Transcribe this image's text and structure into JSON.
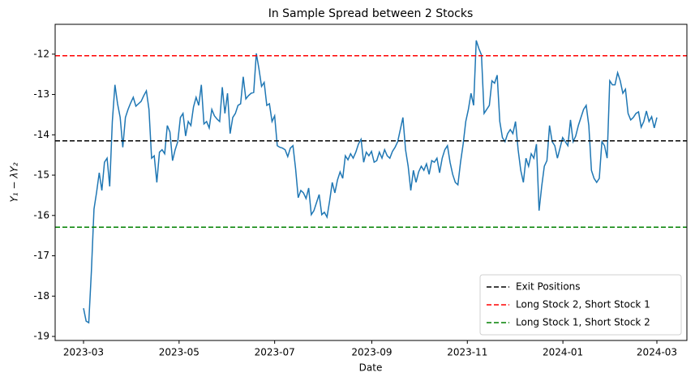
{
  "chart_data": {
    "type": "line",
    "title": "In Sample Spread between 2 Stocks",
    "x_label": "Date",
    "y_label": "Y₁ − λY₂",
    "color": "#1f77b4",
    "values": [
      -18.3,
      -18.62,
      -18.66,
      -17.39,
      -15.84,
      -15.42,
      -14.94,
      -15.38,
      -14.68,
      -14.58,
      -15.28,
      -13.67,
      -12.76,
      -13.23,
      -13.57,
      -14.31,
      -13.57,
      -13.37,
      -13.21,
      -13.07,
      -13.29,
      -13.23,
      -13.17,
      -13.03,
      -12.91,
      -13.37,
      -14.58,
      -14.52,
      -15.18,
      -14.43,
      -14.37,
      -14.47,
      -13.77,
      -13.93,
      -14.64,
      -14.37,
      -14.17,
      -13.57,
      -13.47,
      -14.03,
      -13.67,
      -13.77,
      -13.31,
      -13.07,
      -13.27,
      -12.76,
      -13.73,
      -13.67,
      -13.83,
      -13.37,
      -13.53,
      -13.61,
      -13.67,
      -12.82,
      -13.47,
      -12.97,
      -13.97,
      -13.57,
      -13.47,
      -13.27,
      -13.23,
      -12.56,
      -13.11,
      -13.03,
      -12.97,
      -12.95,
      -11.98,
      -12.36,
      -12.8,
      -12.7,
      -13.27,
      -13.23,
      -13.67,
      -13.53,
      -14.27,
      -14.31,
      -14.33,
      -14.37,
      -14.54,
      -14.33,
      -14.27,
      -14.84,
      -15.56,
      -15.38,
      -15.44,
      -15.58,
      -15.32,
      -15.98,
      -15.88,
      -15.68,
      -15.48,
      -15.98,
      -15.92,
      -16.04,
      -15.64,
      -15.18,
      -15.44,
      -15.12,
      -14.92,
      -15.08,
      -14.52,
      -14.62,
      -14.47,
      -14.58,
      -14.43,
      -14.23,
      -14.11,
      -14.68,
      -14.43,
      -14.52,
      -14.41,
      -14.68,
      -14.64,
      -14.43,
      -14.58,
      -14.37,
      -14.52,
      -14.58,
      -14.41,
      -14.31,
      -14.17,
      -13.87,
      -13.57,
      -14.37,
      -14.78,
      -15.38,
      -14.88,
      -15.18,
      -14.92,
      -14.78,
      -14.88,
      -14.72,
      -14.98,
      -14.64,
      -14.68,
      -14.58,
      -14.94,
      -14.58,
      -14.37,
      -14.27,
      -14.68,
      -14.98,
      -15.18,
      -15.24,
      -14.68,
      -14.23,
      -13.67,
      -13.37,
      -12.97,
      -13.27,
      -11.66,
      -11.86,
      -12.02,
      -13.47,
      -13.37,
      -13.27,
      -12.66,
      -12.72,
      -12.52,
      -13.67,
      -14.07,
      -14.17,
      -13.97,
      -13.87,
      -13.97,
      -13.67,
      -14.37,
      -14.88,
      -15.18,
      -14.58,
      -14.78,
      -14.47,
      -14.58,
      -14.23,
      -15.88,
      -15.28,
      -14.78,
      -14.64,
      -13.77,
      -14.17,
      -14.27,
      -14.58,
      -14.33,
      -14.07,
      -14.17,
      -14.27,
      -13.63,
      -14.17,
      -14.03,
      -13.77,
      -13.57,
      -13.37,
      -13.27,
      -13.77,
      -14.88,
      -15.08,
      -15.18,
      -15.08,
      -14.17,
      -14.27,
      -14.58,
      -12.66,
      -12.76,
      -12.76,
      -12.46,
      -12.66,
      -12.97,
      -12.87,
      -13.47,
      -13.63,
      -13.57,
      -13.47,
      -13.43,
      -13.81,
      -13.67,
      -13.41,
      -13.67,
      -13.55,
      -13.83,
      -13.57
    ],
    "reference_lines": [
      {
        "name": "Exit Positions",
        "color": "#000000",
        "value": -14.15
      },
      {
        "name": "Long Stock 2, Short Stock 1",
        "color": "#ff0000",
        "value": -12.04
      },
      {
        "name": "Long Stock 1, Short Stock 2",
        "color": "#008000",
        "value": -16.29
      }
    ],
    "xlim": [
      -10.84,
      230.46
    ],
    "xticks": [
      {
        "value": 0,
        "label": "2023-03"
      },
      {
        "value": 36.5,
        "label": "2023-05"
      },
      {
        "value": 73.0,
        "label": "2023-07"
      },
      {
        "value": 110.1,
        "label": "2023-09"
      },
      {
        "value": 146.6,
        "label": "2023-11"
      },
      {
        "value": 183.1,
        "label": "2024-01"
      },
      {
        "value": 219,
        "label": "2024-03"
      }
    ],
    "ylim": [
      -19.1,
      -11.26
    ],
    "yticks": [
      -19,
      -18,
      -17,
      -16,
      -15,
      -14,
      -13,
      -12
    ],
    "grid": false,
    "legend": "lower right"
  }
}
